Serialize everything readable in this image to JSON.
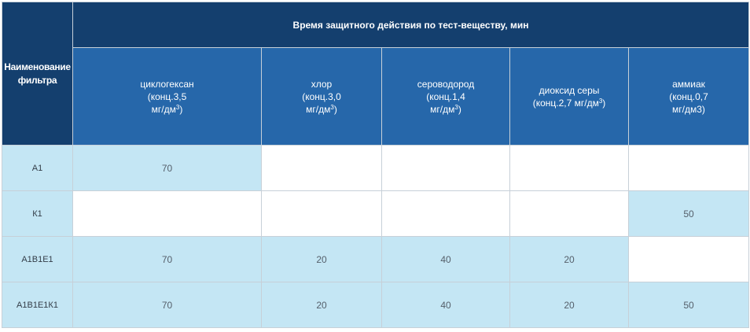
{
  "header": {
    "name_col": [
      "Наименование",
      "фильтра"
    ],
    "group_title": "Время защитного действия по тест-веществу, мин",
    "substances": [
      {
        "lines": [
          "циклогексан",
          "(конц.3,5",
          "мг/дм"
        ],
        "sup": "3",
        "close": ")"
      },
      {
        "lines": [
          "хлор",
          "(конц.3,0",
          "мг/дм"
        ],
        "sup": "3",
        "close": ")"
      },
      {
        "lines": [
          "сероводород",
          "(конц.1,4",
          "мг/дм"
        ],
        "sup": "3",
        "close": ")"
      },
      {
        "lines": [
          "диоксид серы",
          "(конц.2,7 мг/дм"
        ],
        "sup": "3",
        "close": ")"
      },
      {
        "lines": [
          "аммиак",
          "(конц.0,7",
          "мг/дм3)"
        ],
        "sup": "",
        "close": ""
      }
    ]
  },
  "rows": [
    {
      "name": "А1",
      "values": [
        "70",
        "",
        "",
        "",
        ""
      ]
    },
    {
      "name": "К1",
      "values": [
        "",
        "",
        "",
        "",
        "50"
      ]
    },
    {
      "name": "А1В1Е1",
      "values": [
        "70",
        "20",
        "40",
        "20",
        ""
      ]
    },
    {
      "name": "А1В1Е1К1",
      "values": [
        "70",
        "20",
        "40",
        "20",
        "50"
      ]
    }
  ],
  "colors": {
    "header_dark": "#143f6e",
    "header_blue": "#2667aa",
    "cell_fill": "#c4e6f4",
    "cell_empty": "#ffffff"
  }
}
